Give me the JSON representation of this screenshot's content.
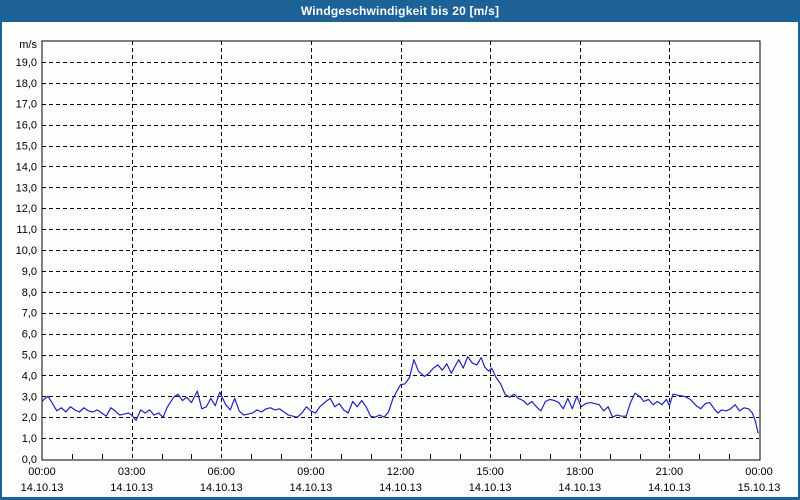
{
  "title": "Windgeschwindigkeit bis 20 [m/s]",
  "colors": {
    "titlebar_bg": "#1d6296",
    "titlebar_text": "#ffffff",
    "frame": "#1d6296",
    "background": "#fcfefb",
    "plot_border": "#000000",
    "gridline": "#000000",
    "series_line": "#2222bf",
    "text": "#000000"
  },
  "chart_data": {
    "type": "line",
    "title": "Windgeschwindigkeit bis 20 [m/s]",
    "ylabel_unit": "m/s",
    "ylim": [
      0,
      20
    ],
    "xlim_hours": [
      0,
      24
    ],
    "grid": "dashed",
    "legend": "none",
    "yticks": [
      {
        "value": 0,
        "label": "0,0"
      },
      {
        "value": 1,
        "label": "1,0"
      },
      {
        "value": 2,
        "label": "2,0"
      },
      {
        "value": 3,
        "label": "3,0"
      },
      {
        "value": 4,
        "label": "4,0"
      },
      {
        "value": 5,
        "label": "5,0"
      },
      {
        "value": 6,
        "label": "6,0"
      },
      {
        "value": 7,
        "label": "7,0"
      },
      {
        "value": 8,
        "label": "8,0"
      },
      {
        "value": 9,
        "label": "9,0"
      },
      {
        "value": 10,
        "label": "10,0"
      },
      {
        "value": 11,
        "label": "11,0"
      },
      {
        "value": 12,
        "label": "12,0"
      },
      {
        "value": 13,
        "label": "13,0"
      },
      {
        "value": 14,
        "label": "14,0"
      },
      {
        "value": 15,
        "label": "15,0"
      },
      {
        "value": 16,
        "label": "16,0"
      },
      {
        "value": 17,
        "label": "17,0"
      },
      {
        "value": 18,
        "label": "18,0"
      },
      {
        "value": 19,
        "label": "19,0"
      }
    ],
    "xticks": [
      {
        "hour": 0,
        "time": "00:00",
        "date": "14.10.13"
      },
      {
        "hour": 3,
        "time": "03:00",
        "date": "14.10.13"
      },
      {
        "hour": 6,
        "time": "06:00",
        "date": "14.10.13"
      },
      {
        "hour": 9,
        "time": "09:00",
        "date": "14.10.13"
      },
      {
        "hour": 12,
        "time": "12:00",
        "date": "14.10.13"
      },
      {
        "hour": 15,
        "time": "15:00",
        "date": "14.10.13"
      },
      {
        "hour": 18,
        "time": "18:00",
        "date": "14.10.13"
      },
      {
        "hour": 21,
        "time": "21:00",
        "date": "14.10.13"
      },
      {
        "hour": 24,
        "time": "00:00",
        "date": "15.10.13"
      }
    ],
    "series": [
      {
        "name": "Windgeschwindigkeit",
        "unit": "m/s",
        "points": [
          [
            0.0,
            2.75
          ],
          [
            0.1,
            2.9
          ],
          [
            0.2,
            3.0
          ],
          [
            0.33,
            2.7
          ],
          [
            0.5,
            2.3
          ],
          [
            0.65,
            2.45
          ],
          [
            0.8,
            2.25
          ],
          [
            0.95,
            2.5
          ],
          [
            1.1,
            2.35
          ],
          [
            1.25,
            2.25
          ],
          [
            1.4,
            2.45
          ],
          [
            1.55,
            2.3
          ],
          [
            1.7,
            2.25
          ],
          [
            1.85,
            2.35
          ],
          [
            2.0,
            2.2
          ],
          [
            2.15,
            2.05
          ],
          [
            2.3,
            2.45
          ],
          [
            2.45,
            2.3
          ],
          [
            2.6,
            2.1
          ],
          [
            2.75,
            2.15
          ],
          [
            2.9,
            2.2
          ],
          [
            3.0,
            2.1
          ],
          [
            3.15,
            1.85
          ],
          [
            3.3,
            2.35
          ],
          [
            3.45,
            2.2
          ],
          [
            3.6,
            2.35
          ],
          [
            3.75,
            2.1
          ],
          [
            3.9,
            2.2
          ],
          [
            4.05,
            2.0
          ],
          [
            4.2,
            2.5
          ],
          [
            4.4,
            2.95
          ],
          [
            4.55,
            3.1
          ],
          [
            4.7,
            2.8
          ],
          [
            4.85,
            2.95
          ],
          [
            5.0,
            2.7
          ],
          [
            5.2,
            3.25
          ],
          [
            5.35,
            2.4
          ],
          [
            5.5,
            2.5
          ],
          [
            5.65,
            2.9
          ],
          [
            5.8,
            2.55
          ],
          [
            5.95,
            3.2
          ],
          [
            6.15,
            2.6
          ],
          [
            6.3,
            2.35
          ],
          [
            6.45,
            2.9
          ],
          [
            6.6,
            2.3
          ],
          [
            6.75,
            2.1
          ],
          [
            6.9,
            2.15
          ],
          [
            7.05,
            2.2
          ],
          [
            7.2,
            2.35
          ],
          [
            7.35,
            2.25
          ],
          [
            7.5,
            2.4
          ],
          [
            7.65,
            2.45
          ],
          [
            7.8,
            2.35
          ],
          [
            7.95,
            2.4
          ],
          [
            8.1,
            2.25
          ],
          [
            8.25,
            2.1
          ],
          [
            8.4,
            2.05
          ],
          [
            8.55,
            2.0
          ],
          [
            8.7,
            2.2
          ],
          [
            8.85,
            2.5
          ],
          [
            9.0,
            2.3
          ],
          [
            9.15,
            2.2
          ],
          [
            9.3,
            2.5
          ],
          [
            9.5,
            2.75
          ],
          [
            9.65,
            2.9
          ],
          [
            9.8,
            2.5
          ],
          [
            9.95,
            2.65
          ],
          [
            10.1,
            2.35
          ],
          [
            10.25,
            2.2
          ],
          [
            10.4,
            2.75
          ],
          [
            10.55,
            2.5
          ],
          [
            10.7,
            2.8
          ],
          [
            10.85,
            2.5
          ],
          [
            11.0,
            2.05
          ],
          [
            11.15,
            2.0
          ],
          [
            11.3,
            2.1
          ],
          [
            11.45,
            2.0
          ],
          [
            11.6,
            2.25
          ],
          [
            11.75,
            2.9
          ],
          [
            11.9,
            3.3
          ],
          [
            12.0,
            3.55
          ],
          [
            12.15,
            3.6
          ],
          [
            12.3,
            3.9
          ],
          [
            12.45,
            4.75
          ],
          [
            12.6,
            4.2
          ],
          [
            12.8,
            3.95
          ],
          [
            12.95,
            4.1
          ],
          [
            13.1,
            4.35
          ],
          [
            13.25,
            4.5
          ],
          [
            13.4,
            4.25
          ],
          [
            13.55,
            4.55
          ],
          [
            13.7,
            4.1
          ],
          [
            13.85,
            4.5
          ],
          [
            13.95,
            4.75
          ],
          [
            14.1,
            4.35
          ],
          [
            14.25,
            4.9
          ],
          [
            14.4,
            4.6
          ],
          [
            14.55,
            4.5
          ],
          [
            14.7,
            4.85
          ],
          [
            14.82,
            4.4
          ],
          [
            14.95,
            4.2
          ],
          [
            15.05,
            4.35
          ],
          [
            15.2,
            3.9
          ],
          [
            15.35,
            3.6
          ],
          [
            15.5,
            3.1
          ],
          [
            15.65,
            2.95
          ],
          [
            15.8,
            3.1
          ],
          [
            15.95,
            2.9
          ],
          [
            16.1,
            2.8
          ],
          [
            16.25,
            2.6
          ],
          [
            16.4,
            2.75
          ],
          [
            16.55,
            2.5
          ],
          [
            16.7,
            2.3
          ],
          [
            16.85,
            2.75
          ],
          [
            17.0,
            2.85
          ],
          [
            17.15,
            2.8
          ],
          [
            17.3,
            2.7
          ],
          [
            17.45,
            2.4
          ],
          [
            17.6,
            2.9
          ],
          [
            17.75,
            2.4
          ],
          [
            17.9,
            3.0
          ],
          [
            18.05,
            2.5
          ],
          [
            18.2,
            2.65
          ],
          [
            18.35,
            2.7
          ],
          [
            18.5,
            2.65
          ],
          [
            18.65,
            2.6
          ],
          [
            18.8,
            2.3
          ],
          [
            18.95,
            2.5
          ],
          [
            19.1,
            2.0
          ],
          [
            19.25,
            2.1
          ],
          [
            19.4,
            2.05
          ],
          [
            19.55,
            2.05
          ],
          [
            19.7,
            2.7
          ],
          [
            19.85,
            3.15
          ],
          [
            20.0,
            3.0
          ],
          [
            20.15,
            2.75
          ],
          [
            20.3,
            2.85
          ],
          [
            20.45,
            2.6
          ],
          [
            20.6,
            2.75
          ],
          [
            20.75,
            2.6
          ],
          [
            20.9,
            2.85
          ],
          [
            21.0,
            2.55
          ],
          [
            21.12,
            3.1
          ],
          [
            21.3,
            3.05
          ],
          [
            21.5,
            3.0
          ],
          [
            21.7,
            2.85
          ],
          [
            21.9,
            2.55
          ],
          [
            22.05,
            2.4
          ],
          [
            22.2,
            2.65
          ],
          [
            22.35,
            2.7
          ],
          [
            22.5,
            2.4
          ],
          [
            22.62,
            2.2
          ],
          [
            22.75,
            2.35
          ],
          [
            22.9,
            2.3
          ],
          [
            23.05,
            2.4
          ],
          [
            23.2,
            2.6
          ],
          [
            23.35,
            2.3
          ],
          [
            23.5,
            2.45
          ],
          [
            23.65,
            2.4
          ],
          [
            23.78,
            2.2
          ],
          [
            23.88,
            1.8
          ],
          [
            23.97,
            1.25
          ]
        ]
      }
    ]
  }
}
